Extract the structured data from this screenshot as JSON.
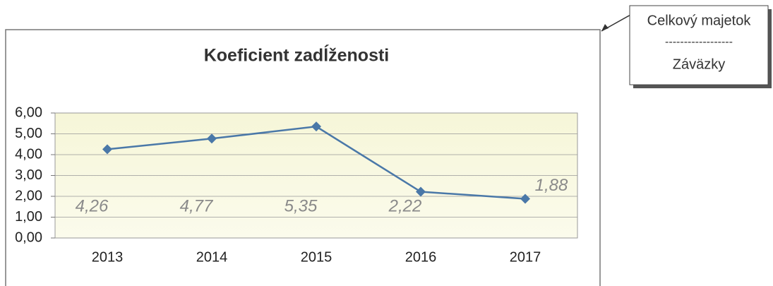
{
  "chart_data": {
    "type": "line",
    "title": "Koeficient zadĺženosti",
    "categories": [
      "2013",
      "2014",
      "2015",
      "2016",
      "2017"
    ],
    "series": [
      {
        "name": "Koeficient zadĺženosti",
        "color": "#4a78a8",
        "values": [
          4.26,
          4.77,
          5.35,
          2.22,
          1.88
        ],
        "value_labels": [
          "4,26",
          "4,77",
          "5,35",
          "2,22",
          "1,88"
        ]
      }
    ],
    "ylim": [
      0,
      6
    ],
    "yticks": [
      {
        "value": 0,
        "label": "0,00"
      },
      {
        "value": 1,
        "label": "1,00"
      },
      {
        "value": 2,
        "label": "2,00"
      },
      {
        "value": 3,
        "label": "3,00"
      },
      {
        "value": 4,
        "label": "4,00"
      },
      {
        "value": 5,
        "label": "5,00"
      },
      {
        "value": 6,
        "label": "6,00"
      }
    ],
    "grid": true
  },
  "callout": {
    "numerator": "Celkový majetok",
    "separator": "------------------",
    "denominator": "Záväzky"
  }
}
